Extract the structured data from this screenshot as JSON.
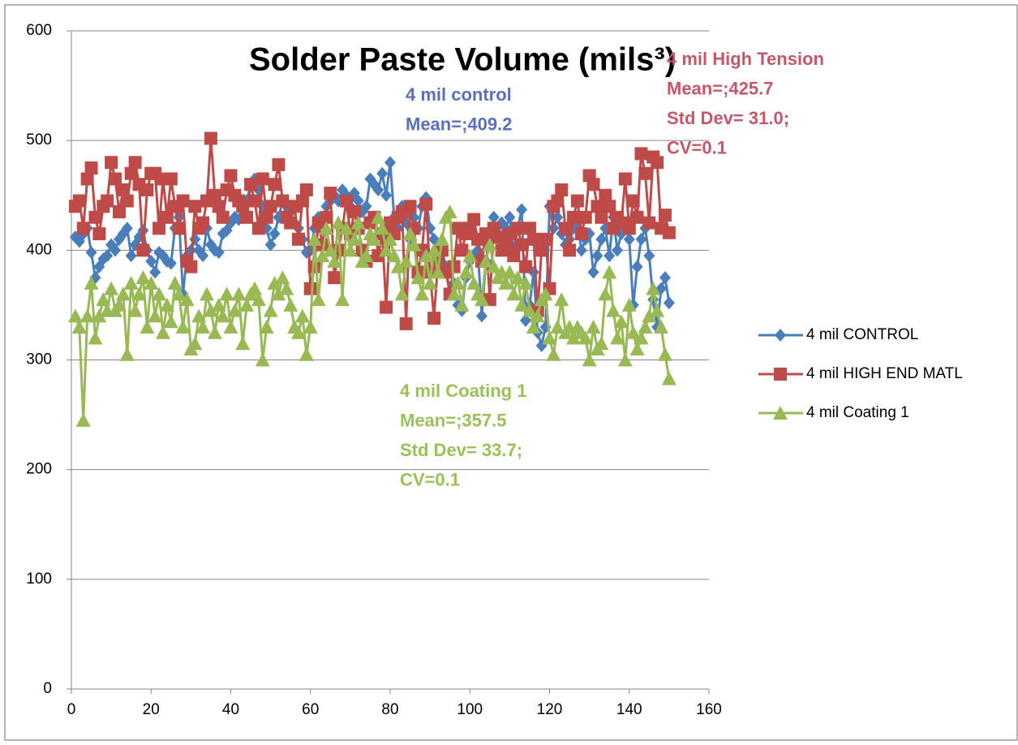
{
  "chart_data": {
    "type": "line",
    "title": "Solder Paste  Volume (mils³)",
    "annotations": [
      {
        "lines": [
          "4 mil control",
          "Mean=;409.2"
        ],
        "color": "#5b6fbf"
      },
      {
        "lines": [
          "4 mil High Tension",
          "Mean=;425.7",
          "Std Dev= 31.0;",
          "CV=0.1"
        ],
        "color": "#c65668"
      },
      {
        "lines": [
          "4 mil Coating 1",
          "Mean=;357.5",
          "Std Dev= 33.7;",
          "CV=0.1"
        ],
        "color": "#98c257"
      }
    ],
    "x": [
      1,
      2,
      3,
      4,
      5,
      6,
      7,
      8,
      9,
      10,
      11,
      12,
      13,
      14,
      15,
      16,
      17,
      18,
      19,
      20,
      21,
      22,
      23,
      24,
      25,
      26,
      27,
      28,
      29,
      30,
      31,
      32,
      33,
      34,
      35,
      36,
      37,
      38,
      39,
      40,
      41,
      42,
      43,
      44,
      45,
      46,
      47,
      48,
      49,
      50,
      51,
      52,
      53,
      54,
      55,
      56,
      57,
      58,
      59,
      60,
      61,
      62,
      63,
      64,
      65,
      66,
      67,
      68,
      69,
      70,
      71,
      72,
      73,
      74,
      75,
      76,
      77,
      78,
      79,
      80,
      81,
      82,
      83,
      84,
      85,
      86,
      87,
      88,
      89,
      90,
      91,
      92,
      93,
      94,
      95,
      96,
      97,
      98,
      99,
      100,
      101,
      102,
      103,
      104,
      105,
      106,
      107,
      108,
      109,
      110,
      111,
      112,
      113,
      114,
      115,
      116,
      117,
      118,
      119,
      120,
      121,
      122,
      123,
      124,
      125,
      126,
      127,
      128,
      129,
      130,
      131,
      132,
      133,
      134,
      135,
      136,
      137,
      138,
      139,
      140,
      141,
      142,
      143,
      144,
      145,
      146,
      147,
      148,
      149,
      150
    ],
    "series": [
      {
        "name": "4 mil CONTROL",
        "color": "#4a7ebb",
        "marker": "diamond",
        "values": [
          412,
          408,
          415,
          420,
          398,
          375,
          385,
          392,
          395,
          405,
          400,
          410,
          415,
          420,
          395,
          405,
          412,
          418,
          400,
          390,
          380,
          398,
          395,
          390,
          388,
          420,
          430,
          360,
          395,
          400,
          410,
          400,
          395,
          420,
          405,
          400,
          398,
          415,
          418,
          425,
          430,
          428,
          440,
          445,
          460,
          465,
          455,
          440,
          420,
          405,
          415,
          430,
          445,
          440,
          435,
          425,
          420,
          410,
          398,
          400,
          420,
          430,
          425,
          440,
          445,
          450,
          445,
          455,
          450,
          440,
          452,
          445,
          435,
          440,
          465,
          460,
          455,
          470,
          450,
          480,
          430,
          420,
          440,
          425,
          410,
          430,
          420,
          440,
          448,
          420,
          410,
          390,
          400,
          385,
          360,
          370,
          350,
          345,
          375,
          390,
          395,
          400,
          340,
          390,
          410,
          430,
          415,
          425,
          420,
          430,
          400,
          420,
          437,
          336,
          350,
          380,
          325,
          313,
          330,
          440,
          420,
          430,
          415,
          405,
          410,
          420,
          425,
          400,
          410,
          415,
          380,
          395,
          410,
          420,
          395,
          430,
          400,
          415,
          420,
          410,
          350,
          385,
          410,
          420,
          395,
          355,
          330,
          365,
          375,
          352
        ]
      },
      {
        "name": "4 mil HIGH END MATL",
        "color": "#be4b48",
        "marker": "square",
        "values": [
          440,
          445,
          420,
          465,
          475,
          430,
          415,
          440,
          445,
          480,
          465,
          435,
          455,
          445,
          470,
          480,
          460,
          400,
          455,
          470,
          470,
          420,
          465,
          430,
          465,
          440,
          420,
          445,
          390,
          385,
          440,
          420,
          425,
          445,
          502,
          450,
          440,
          430,
          455,
          468,
          450,
          445,
          440,
          430,
          460,
          445,
          420,
          465,
          430,
          440,
          460,
          478,
          445,
          430,
          425,
          440,
          410,
          445,
          455,
          365,
          385,
          425,
          405,
          430,
          452,
          375,
          400,
          420,
          445,
          415,
          435,
          420,
          400,
          390,
          425,
          430,
          395,
          415,
          348,
          425,
          415,
          430,
          435,
          333,
          440,
          420,
          380,
          400,
          442,
          380,
          338,
          390,
          400,
          380,
          360,
          385,
          420,
          400,
          415,
          420,
          428,
          410,
          390,
          415,
          355,
          420,
          412,
          400,
          405,
          415,
          395,
          420,
          405,
          385,
          420,
          410,
          345,
          400,
          410,
          365,
          440,
          445,
          455,
          420,
          400,
          430,
          445,
          415,
          430,
          468,
          460,
          440,
          430,
          450,
          440,
          420,
          430,
          425,
          465,
          420,
          445,
          430,
          488,
          470,
          425,
          485,
          480,
          420,
          432,
          416
        ]
      },
      {
        "name": "4 mil Coating 1",
        "color": "#98b954",
        "marker": "triangle",
        "values": [
          340,
          330,
          245,
          340,
          370,
          320,
          340,
          355,
          345,
          365,
          345,
          350,
          360,
          305,
          370,
          345,
          360,
          375,
          330,
          370,
          340,
          360,
          325,
          350,
          335,
          370,
          360,
          330,
          355,
          310,
          315,
          340,
          330,
          360,
          345,
          325,
          350,
          340,
          360,
          330,
          345,
          360,
          315,
          350,
          360,
          365,
          355,
          300,
          330,
          345,
          370,
          360,
          375,
          365,
          350,
          330,
          325,
          340,
          305,
          330,
          410,
          355,
          395,
          420,
          400,
          390,
          425,
          355,
          420,
          400,
          410,
          425,
          390,
          395,
          415,
          410,
          430,
          420,
          400,
          410,
          395,
          385,
          360,
          390,
          415,
          405,
          375,
          360,
          395,
          370,
          400,
          380,
          410,
          430,
          435,
          360,
          370,
          350,
          380,
          395,
          370,
          360,
          355,
          390,
          405,
          385,
          375,
          380,
          370,
          380,
          360,
          375,
          350,
          370,
          345,
          330,
          340,
          355,
          360,
          320,
          305,
          330,
          355,
          325,
          330,
          320,
          330,
          325,
          320,
          300,
          330,
          310,
          315,
          360,
          380,
          345,
          320,
          335,
          300,
          350,
          325,
          310,
          320,
          330,
          340,
          365,
          345,
          330,
          305,
          283
        ]
      }
    ],
    "xlim": [
      0,
      160
    ],
    "xticks": [
      0,
      20,
      40,
      60,
      80,
      100,
      120,
      140,
      160
    ],
    "ylim": [
      0,
      600
    ],
    "yticks": [
      0,
      100,
      200,
      300,
      400,
      500,
      600
    ],
    "grid": true,
    "legend": "right"
  }
}
